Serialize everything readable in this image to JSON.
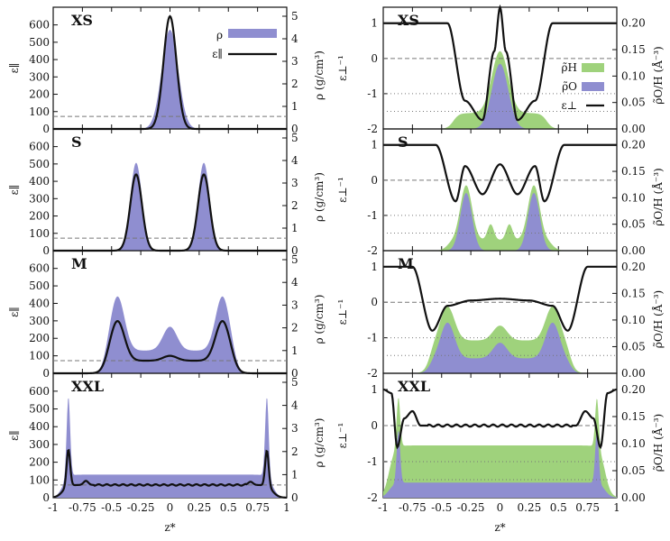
{
  "chart_data": {
    "type": "area",
    "x": {
      "label": "z*",
      "range": [
        -1,
        1
      ],
      "ticks": [
        "-1",
        "-0.75",
        "-0.5",
        "-0.25",
        "0",
        "0.25",
        "0.5",
        "0.75",
        "1"
      ]
    },
    "left_column": {
      "ylabel_left": "ε∥",
      "ylabel_right": "ρ (g/cm³)",
      "ylim_left": [
        0,
        650
      ],
      "yticks_left": [
        "0",
        "100",
        "200",
        "300",
        "400",
        "500",
        "600"
      ],
      "ylim_right": [
        0,
        5
      ],
      "yticks_right": [
        "0",
        "1",
        "2",
        "3",
        "4",
        "5"
      ],
      "reference_line": 72,
      "legend": [
        "ρ",
        "ε∥"
      ],
      "panels": [
        {
          "title": "XS",
          "density_peaks": [
            {
              "z": 0.0,
              "height": 4.4,
              "width": 0.07
            }
          ],
          "eps_par": {
            "base": 0,
            "peaks": [
              {
                "z": 0.0,
                "height": 650,
                "width": 0.055
              }
            ]
          },
          "edges": [
            -0.16,
            0.16
          ]
        },
        {
          "title": "S",
          "density_peaks": [
            {
              "z": -0.29,
              "height": 3.9,
              "width": 0.05
            },
            {
              "z": 0.29,
              "height": 3.9,
              "width": 0.05
            }
          ],
          "eps_par": {
            "base": 0,
            "peaks": [
              {
                "z": -0.29,
                "height": 440,
                "width": 0.05
              },
              {
                "z": 0.29,
                "height": 440,
                "width": 0.05
              }
            ]
          },
          "edges": [
            -0.4,
            0.4
          ]
        },
        {
          "title": "M",
          "density_peaks": [
            {
              "z": -0.45,
              "height": 2.4,
              "width": 0.06
            },
            {
              "z": 0.45,
              "height": 2.4,
              "width": 0.06
            },
            {
              "z": 0.0,
              "height": 1.05,
              "width": 0.06
            }
          ],
          "eps_par": {
            "base": 72,
            "peaks": [
              {
                "z": -0.45,
                "height": 300,
                "width": 0.06
              },
              {
                "z": 0.45,
                "height": 300,
                "width": 0.06
              },
              {
                "z": 0.0,
                "height": 100,
                "width": 0.06
              }
            ]
          },
          "edges": [
            -0.55,
            0.55
          ]
        },
        {
          "title": "XXL",
          "density_peaks": [
            {
              "z": -0.87,
              "height": 3.5,
              "width": 0.015
            },
            {
              "z": 0.83,
              "height": 3.5,
              "width": 0.015
            }
          ],
          "eps_par": {
            "base": 72,
            "peaks": [
              {
                "z": -0.87,
                "height": 280,
                "width": 0.015
              },
              {
                "z": 0.83,
                "height": 275,
                "width": 0.015
              },
              {
                "z": -0.72,
                "height": 95,
                "width": 0.02
              },
              {
                "z": 0.69,
                "height": 90,
                "width": 0.02
              }
            ]
          },
          "edges": [
            -0.92,
            0.88
          ]
        }
      ]
    },
    "right_column": {
      "ylabel_left": "ε⊥⁻¹",
      "ylabel_right": "ρ̃O/H (Å⁻³)",
      "ylim_left": [
        -2,
        1.3
      ],
      "yticks_left": [
        "-2",
        "-1",
        "0",
        "1"
      ],
      "ylim_right": [
        0,
        0.22
      ],
      "yticks_right": [
        "0.00",
        "0.05",
        "0.10",
        "0.15",
        "0.20"
      ],
      "dashed_line": 0,
      "dotted_lines": [
        -1,
        -1.5
      ],
      "legend": [
        "ρ̃H",
        "ρ̃O",
        "ε⊥"
      ],
      "panels": [
        {
          "title": "XS",
          "edges": [
            -0.4,
            0.4
          ],
          "eps_inv": [
            [
              -1,
              1
            ],
            [
              -0.45,
              1
            ],
            [
              -0.3,
              -1.2
            ],
            [
              -0.15,
              -1.75
            ],
            [
              -0.05,
              0.2
            ],
            [
              0,
              1.45
            ],
            [
              0.05,
              0.2
            ],
            [
              0.15,
              -1.75
            ],
            [
              0.3,
              -1.2
            ],
            [
              0.45,
              1
            ],
            [
              1,
              1
            ]
          ]
        },
        {
          "title": "S",
          "edges": [
            -0.45,
            0.45
          ],
          "eps_inv": [
            [
              -1,
              1
            ],
            [
              -0.55,
              1
            ],
            [
              -0.38,
              -0.6
            ],
            [
              -0.3,
              0.4
            ],
            [
              -0.15,
              -0.4
            ],
            [
              0,
              0.45
            ],
            [
              0.15,
              -0.4
            ],
            [
              0.3,
              0.4
            ],
            [
              0.38,
              -0.6
            ],
            [
              0.55,
              1
            ],
            [
              1,
              1
            ]
          ]
        },
        {
          "title": "M",
          "edges": [
            -0.6,
            0.6
          ],
          "eps_inv": [
            [
              -1,
              1
            ],
            [
              -0.75,
              1
            ],
            [
              -0.58,
              -0.8
            ],
            [
              -0.45,
              -0.1
            ],
            [
              -0.25,
              0.05
            ],
            [
              0,
              0.1
            ],
            [
              0.25,
              0.05
            ],
            [
              0.45,
              -0.1
            ],
            [
              0.58,
              -0.8
            ],
            [
              0.75,
              1
            ],
            [
              1,
              1
            ]
          ]
        },
        {
          "title": "XXL",
          "edges": [
            -0.95,
            0.9
          ],
          "eps_inv": [
            [
              -1,
              1
            ],
            [
              -0.93,
              0.9
            ],
            [
              -0.88,
              -0.6
            ],
            [
              -0.82,
              0.2
            ],
            [
              -0.75,
              0.4
            ],
            [
              -0.68,
              0
            ],
            [
              0.65,
              0
            ],
            [
              0.73,
              0.4
            ],
            [
              0.8,
              0.2
            ],
            [
              0.86,
              -0.6
            ],
            [
              0.92,
              0.9
            ],
            [
              1,
              1
            ]
          ]
        }
      ]
    }
  },
  "colors": {
    "purple": "#8f8ed0",
    "green": "#9fd27c",
    "line": "#111111",
    "ref": "#777777"
  }
}
